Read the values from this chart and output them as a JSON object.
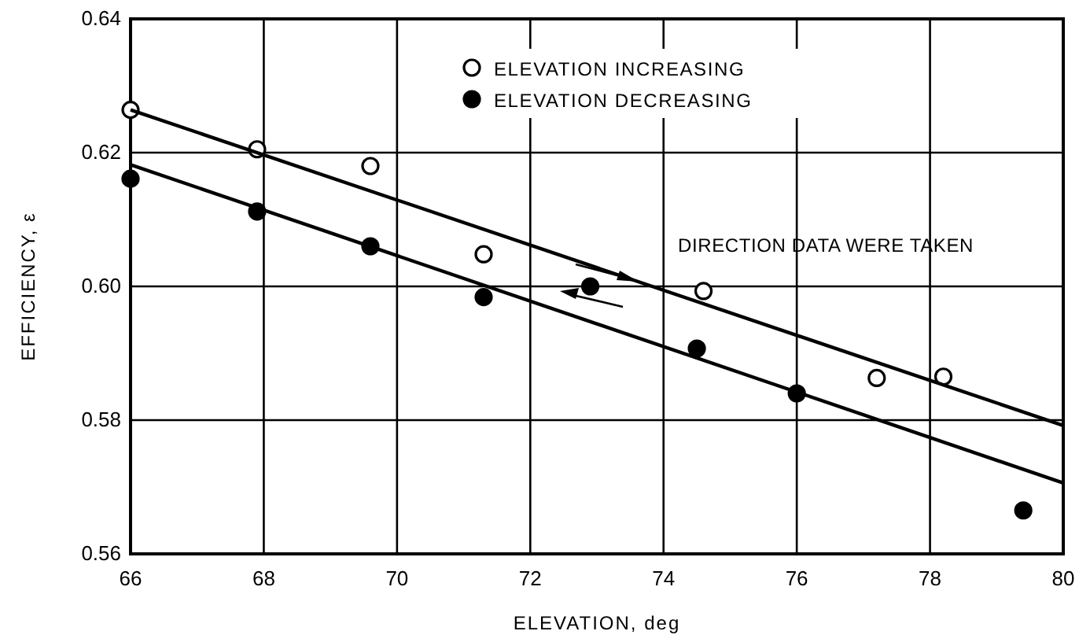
{
  "chart_data": {
    "type": "scatter",
    "xlabel": "ELEVATION, deg",
    "ylabel": "EFFICIENCY, ε",
    "xlim": [
      66,
      80
    ],
    "xticks": [
      66,
      68,
      70,
      72,
      74,
      76,
      78,
      80
    ],
    "ylim": [
      0.56,
      0.64
    ],
    "yticks": [
      0.56,
      0.58,
      {
        "value": 0.6,
        "label": "0.60"
      },
      0.62,
      0.64
    ],
    "grid": true,
    "legend": "top right",
    "annotations": [
      "DIRECTION DATA WERE TAKEN"
    ],
    "series": [
      {
        "name": "ELEVATION INCREASING",
        "color": "#ffffff",
        "marker": "circle",
        "x": [
          66,
          67.9,
          69.6,
          71.3,
          74.6,
          77.2,
          78.2
        ],
        "values": [
          0.6264,
          0.6205,
          0.618,
          0.6048,
          0.5993,
          0.5863,
          0.5865
        ]
      },
      {
        "name": "ELEVATION DECREASING",
        "color": "#000000",
        "marker": "circle",
        "x": [
          66,
          67.9,
          69.6,
          71.3,
          72.9,
          74.5,
          76,
          79.4
        ],
        "values": [
          0.6161,
          0.6112,
          0.606,
          0.5984,
          0.6,
          0.5907,
          0.584,
          0.5665
        ]
      },
      {
        "type": "line",
        "marker": "none",
        "color": "#000000",
        "x": [
          66,
          80
        ],
        "values": [
          0.6264,
          0.5792
        ]
      },
      {
        "type": "line",
        "marker": "none",
        "color": "#000000",
        "x": [
          66,
          80
        ],
        "values": [
          0.6182,
          0.5706
        ]
      }
    ]
  }
}
